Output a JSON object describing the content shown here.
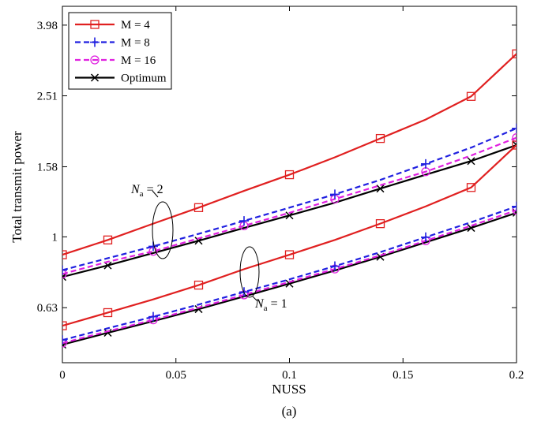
{
  "chart_data": {
    "type": "line",
    "xlabel": "NUSS",
    "ylabel": "Total transmit power",
    "caption": "(a)",
    "xlim": [
      0,
      0.2
    ],
    "ylim": [
      0.44,
      4.5
    ],
    "y_scale": "log",
    "x_ticks": [
      "0",
      "0.05",
      "0.1",
      "0.15",
      "0.2"
    ],
    "y_ticks": [
      "0.63",
      "1",
      "1.58",
      "2.51",
      "3.98"
    ],
    "grid": false,
    "legend_position": "top-left",
    "x": [
      0,
      0.02,
      0.04,
      0.06,
      0.08,
      0.1,
      0.12,
      0.14,
      0.16,
      0.18,
      0.2
    ],
    "legend": [
      {
        "label": "M = 4",
        "color": "#e02020",
        "dash": "solid",
        "marker": "square"
      },
      {
        "label": "M = 8",
        "color": "#2020e0",
        "dash": "dashed",
        "marker": "plus"
      },
      {
        "label": "M = 16",
        "color": "#e020e0",
        "dash": "dashed",
        "marker": "circle"
      },
      {
        "label": "Optimum",
        "color": "#000000",
        "dash": "solid",
        "marker": "x"
      }
    ],
    "groups": [
      {
        "annotation": "N_a = 2",
        "series": [
          {
            "style": 0,
            "values": [
              0.89,
              0.98,
              1.09,
              1.21,
              1.35,
              1.5,
              1.68,
              1.9,
              2.15,
              2.5,
              3.3
            ]
          },
          {
            "style": 1,
            "values": [
              0.805,
              0.87,
              0.94,
              1.02,
              1.11,
              1.21,
              1.32,
              1.45,
              1.61,
              1.79,
              2.03
            ]
          },
          {
            "style": 2,
            "values": [
              0.785,
              0.85,
              0.91,
              0.99,
              1.075,
              1.17,
              1.28,
              1.4,
              1.53,
              1.7,
              1.91
            ]
          },
          {
            "style": 3,
            "values": [
              0.77,
              0.83,
              0.9,
              0.975,
              1.06,
              1.15,
              1.25,
              1.37,
              1.5,
              1.64,
              1.82
            ]
          }
        ]
      },
      {
        "annotation": "N_a = 1",
        "series": [
          {
            "style": 0,
            "values": [
              0.56,
              0.61,
              0.665,
              0.73,
              0.81,
              0.89,
              0.98,
              1.09,
              1.22,
              1.38,
              1.82
            ]
          },
          {
            "style": 1,
            "values": [
              0.51,
              0.551,
              0.594,
              0.643,
              0.698,
              0.758,
              0.826,
              0.905,
              0.998,
              1.1,
              1.22
            ]
          },
          {
            "style": 2,
            "values": [
              0.5,
              0.54,
              0.582,
              0.63,
              0.685,
              0.745,
              0.811,
              0.886,
              0.975,
              1.075,
              1.19
            ]
          },
          {
            "style": 3,
            "values": [
              0.495,
              0.535,
              0.577,
              0.624,
              0.678,
              0.737,
              0.803,
              0.878,
              0.965,
              1.06,
              1.17
            ]
          }
        ]
      }
    ]
  }
}
